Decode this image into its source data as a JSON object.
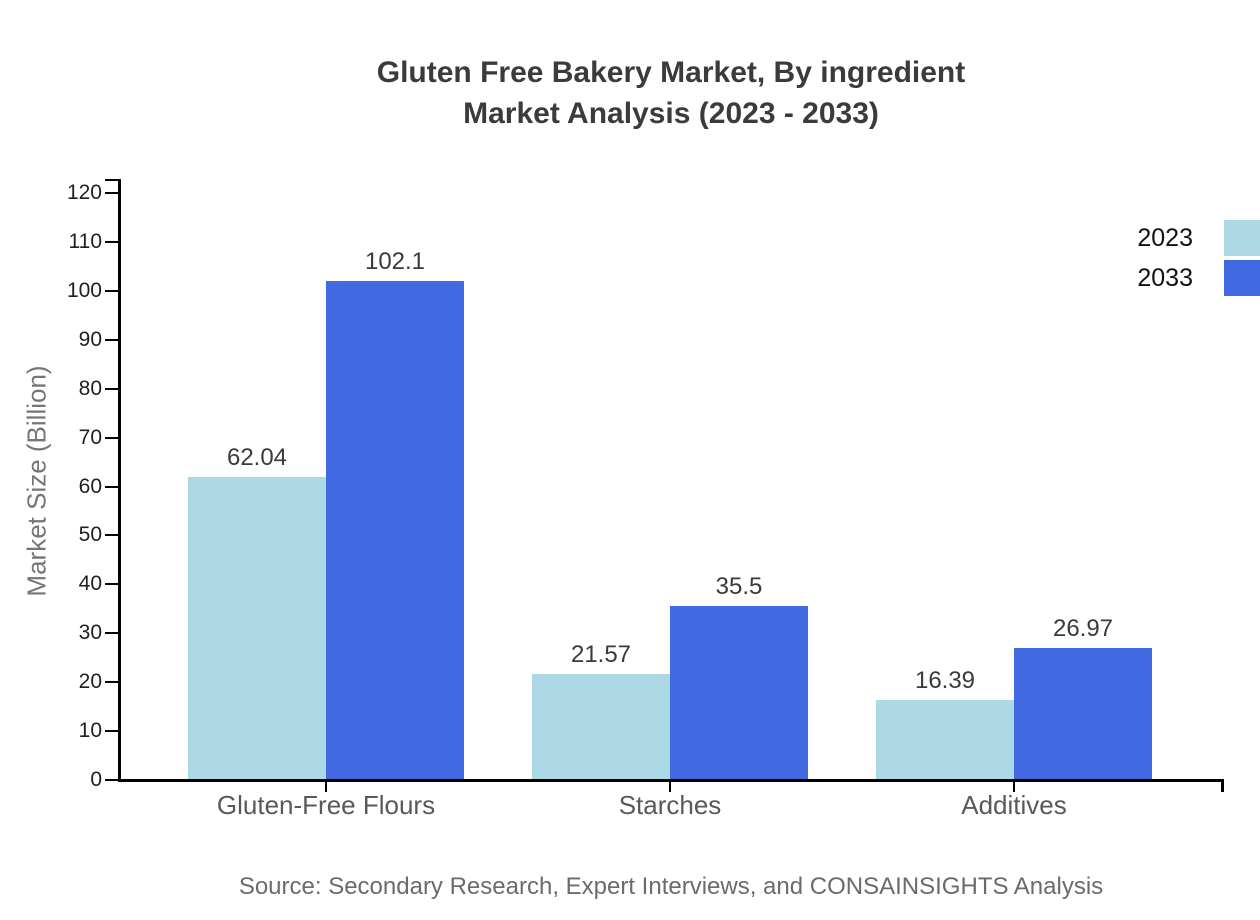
{
  "chart_data": {
    "type": "bar",
    "title": "Gluten Free Bakery Market, By ingredient Market Analysis (2023 - 2033)",
    "title_lines": [
      "Gluten Free Bakery Market, By ingredient",
      "Market Analysis (2023 - 2033)"
    ],
    "xlabel": "",
    "ylabel": "Market Size (Billion)",
    "categories": [
      "Gluten-Free Flours",
      "Starches",
      "Additives"
    ],
    "series": [
      {
        "name": "2023",
        "color": "#add8e6",
        "values": [
          62.04,
          21.57,
          16.39
        ]
      },
      {
        "name": "2033",
        "color": "#4169e1",
        "values": [
          102.1,
          35.5,
          26.97
        ]
      }
    ],
    "ylim": [
      0,
      120
    ],
    "yticks": [
      0,
      10,
      20,
      30,
      40,
      50,
      60,
      70,
      80,
      90,
      100,
      110,
      120
    ],
    "grid": false,
    "bar_value_labels": true,
    "legend_position": "top-right-outside",
    "axis_color": "#000000",
    "source_note": "Source: Secondary Research, Expert Interviews, and CONSAINSIGHTS Analysis"
  }
}
